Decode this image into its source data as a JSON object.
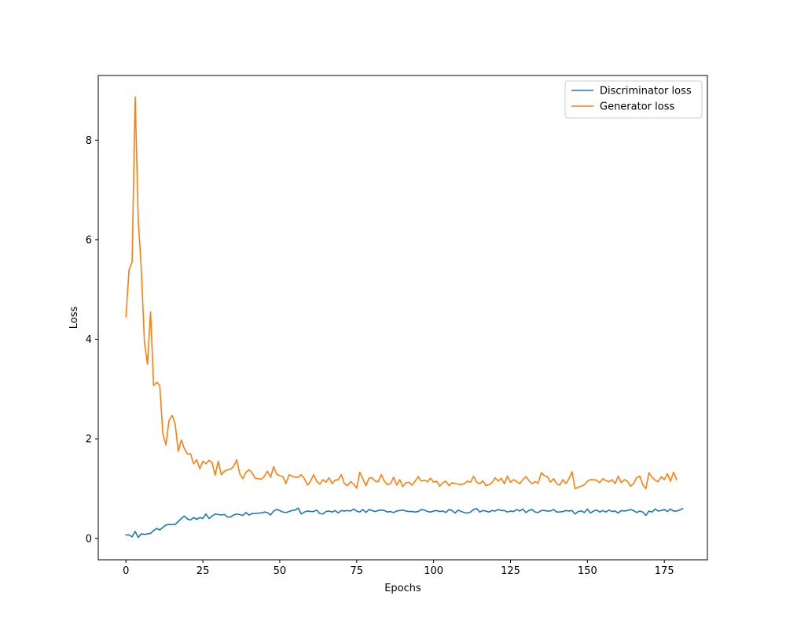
{
  "chart_data": {
    "type": "line",
    "title": "",
    "xlabel": "Epochs",
    "ylabel": "Loss",
    "xlim": [
      -9,
      189
    ],
    "ylim": [
      -0.43,
      9.3
    ],
    "xticks": [
      0,
      25,
      50,
      75,
      100,
      125,
      150,
      175
    ],
    "yticks": [
      0,
      2,
      4,
      6,
      8
    ],
    "grid": false,
    "legend_position": "upper right",
    "series": [
      {
        "name": "Discriminator loss",
        "color": "#1f77b4",
        "x_start": 0,
        "values": [
          0.07,
          0.07,
          0.03,
          0.14,
          0.02,
          0.09,
          0.08,
          0.09,
          0.1,
          0.16,
          0.2,
          0.17,
          0.22,
          0.27,
          0.28,
          0.28,
          0.28,
          0.34,
          0.4,
          0.45,
          0.39,
          0.37,
          0.42,
          0.38,
          0.42,
          0.4,
          0.49,
          0.4,
          0.45,
          0.49,
          0.48,
          0.47,
          0.48,
          0.43,
          0.43,
          0.47,
          0.49,
          0.48,
          0.46,
          0.52,
          0.47,
          0.5,
          0.5,
          0.51,
          0.51,
          0.53,
          0.52,
          0.47,
          0.55,
          0.58,
          0.56,
          0.53,
          0.52,
          0.54,
          0.56,
          0.57,
          0.61,
          0.49,
          0.53,
          0.55,
          0.54,
          0.54,
          0.57,
          0.5,
          0.49,
          0.54,
          0.55,
          0.53,
          0.56,
          0.51,
          0.56,
          0.55,
          0.56,
          0.55,
          0.59,
          0.55,
          0.53,
          0.58,
          0.52,
          0.58,
          0.56,
          0.54,
          0.56,
          0.57,
          0.56,
          0.53,
          0.54,
          0.52,
          0.55,
          0.56,
          0.57,
          0.55,
          0.54,
          0.54,
          0.53,
          0.54,
          0.58,
          0.57,
          0.54,
          0.53,
          0.55,
          0.56,
          0.54,
          0.55,
          0.52,
          0.58,
          0.56,
          0.51,
          0.57,
          0.54,
          0.52,
          0.51,
          0.53,
          0.58,
          0.6,
          0.53,
          0.56,
          0.55,
          0.53,
          0.56,
          0.55,
          0.58,
          0.56,
          0.56,
          0.53,
          0.55,
          0.54,
          0.58,
          0.55,
          0.59,
          0.52,
          0.56,
          0.58,
          0.53,
          0.52,
          0.56,
          0.56,
          0.55,
          0.55,
          0.58,
          0.53,
          0.53,
          0.54,
          0.56,
          0.55,
          0.56,
          0.49,
          0.54,
          0.55,
          0.52,
          0.59,
          0.51,
          0.55,
          0.57,
          0.53,
          0.56,
          0.53,
          0.57,
          0.54,
          0.55,
          0.51,
          0.56,
          0.55,
          0.56,
          0.58,
          0.56,
          0.52,
          0.55,
          0.53,
          0.46,
          0.55,
          0.53,
          0.59,
          0.55,
          0.56,
          0.58,
          0.54,
          0.59,
          0.55,
          0.55,
          0.57,
          0.6
        ]
      },
      {
        "name": "Generator loss",
        "color": "#ff7f0e",
        "x_start": 0,
        "values": [
          4.45,
          5.4,
          5.55,
          8.87,
          6.4,
          5.4,
          3.95,
          3.5,
          4.55,
          3.07,
          3.14,
          3.07,
          2.1,
          1.88,
          2.37,
          2.47,
          2.3,
          1.75,
          1.98,
          1.8,
          1.7,
          1.7,
          1.5,
          1.58,
          1.4,
          1.55,
          1.5,
          1.57,
          1.52,
          1.27,
          1.55,
          1.28,
          1.35,
          1.38,
          1.39,
          1.45,
          1.58,
          1.3,
          1.2,
          1.33,
          1.38,
          1.32,
          1.21,
          1.2,
          1.19,
          1.25,
          1.35,
          1.23,
          1.44,
          1.29,
          1.26,
          1.24,
          1.1,
          1.28,
          1.25,
          1.23,
          1.23,
          1.28,
          1.2,
          1.07,
          1.15,
          1.28,
          1.15,
          1.09,
          1.18,
          1.13,
          1.22,
          1.1,
          1.17,
          1.18,
          1.28,
          1.1,
          1.06,
          1.14,
          1.09,
          1.01,
          1.33,
          1.2,
          1.06,
          1.21,
          1.22,
          1.15,
          1.14,
          1.28,
          1.15,
          1.08,
          1.1,
          1.23,
          1.07,
          1.18,
          1.04,
          1.12,
          1.13,
          1.07,
          1.15,
          1.24,
          1.15,
          1.17,
          1.14,
          1.21,
          1.13,
          1.15,
          1.05,
          1.12,
          1.15,
          1.06,
          1.12,
          1.1,
          1.09,
          1.08,
          1.1,
          1.15,
          1.13,
          1.25,
          1.13,
          1.1,
          1.16,
          1.06,
          1.08,
          1.12,
          1.22,
          1.15,
          1.21,
          1.1,
          1.25,
          1.13,
          1.18,
          1.14,
          1.1,
          1.18,
          1.24,
          1.16,
          1.1,
          1.14,
          1.11,
          1.32,
          1.26,
          1.24,
          1.13,
          1.2,
          1.1,
          1.07,
          1.18,
          1.1,
          1.2,
          1.34,
          1.0,
          1.03,
          1.05,
          1.08,
          1.15,
          1.18,
          1.18,
          1.17,
          1.12,
          1.2,
          1.16,
          1.14,
          1.18,
          1.1,
          1.25,
          1.12,
          1.18,
          1.15,
          1.05,
          1.1,
          1.22,
          1.25,
          1.08,
          1.0,
          1.32,
          1.23,
          1.17,
          1.14,
          1.24,
          1.18,
          1.3,
          1.15,
          1.33,
          1.18
        ]
      }
    ]
  }
}
